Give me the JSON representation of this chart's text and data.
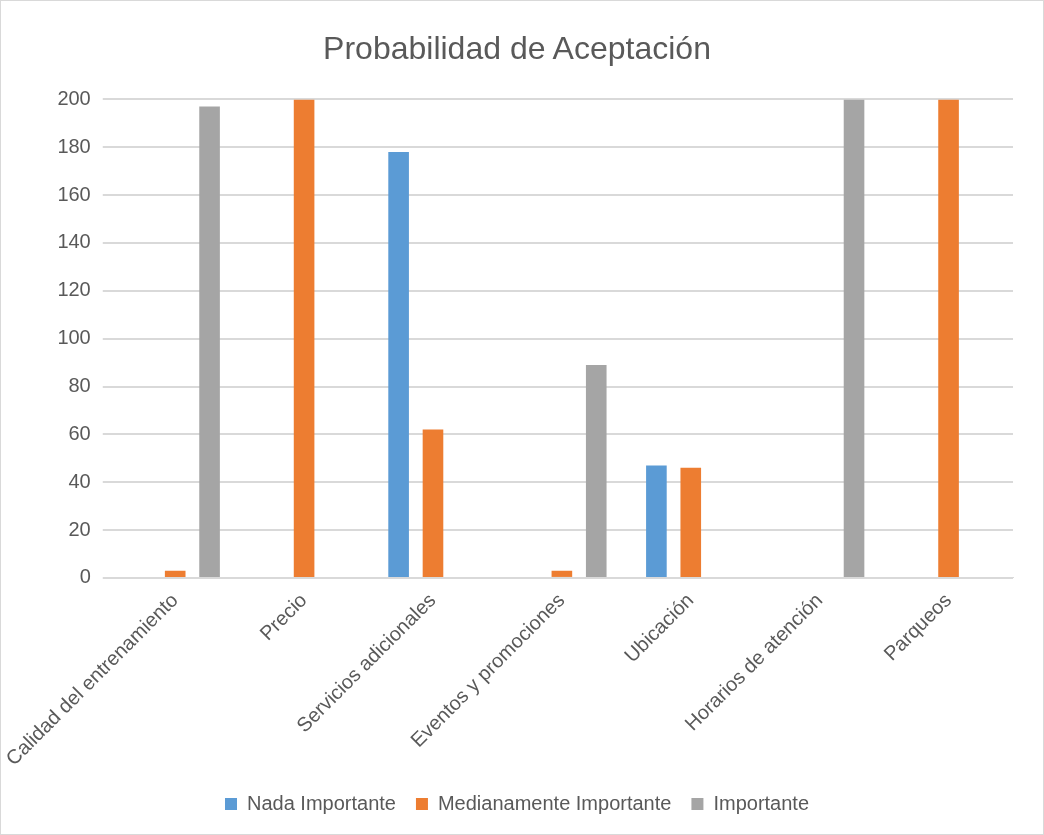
{
  "chart_data": {
    "type": "bar",
    "title": "Probabilidad de Aceptación",
    "categories": [
      "Calidad del entrenamiento",
      "Precio",
      "Servicios adicionales",
      "Eventos y promociones",
      "Ubicación",
      "Horarios de atención",
      "Parqueos"
    ],
    "series": [
      {
        "name": "Nada Importante",
        "color": "#5b9bd5",
        "values": [
          0,
          0,
          178,
          0,
          47,
          0,
          0
        ]
      },
      {
        "name": "Medianamente Importante",
        "color": "#ed7d31",
        "values": [
          3,
          200,
          62,
          3,
          46,
          0,
          200
        ]
      },
      {
        "name": "Importante",
        "color": "#a5a5a5",
        "values": [
          197,
          0,
          0,
          89,
          0,
          200,
          0
        ]
      }
    ],
    "ylim": [
      0,
      200
    ],
    "yticks": [
      0,
      20,
      40,
      60,
      80,
      100,
      120,
      140,
      160,
      180,
      200
    ],
    "grid": "y",
    "legend": "bottom"
  }
}
